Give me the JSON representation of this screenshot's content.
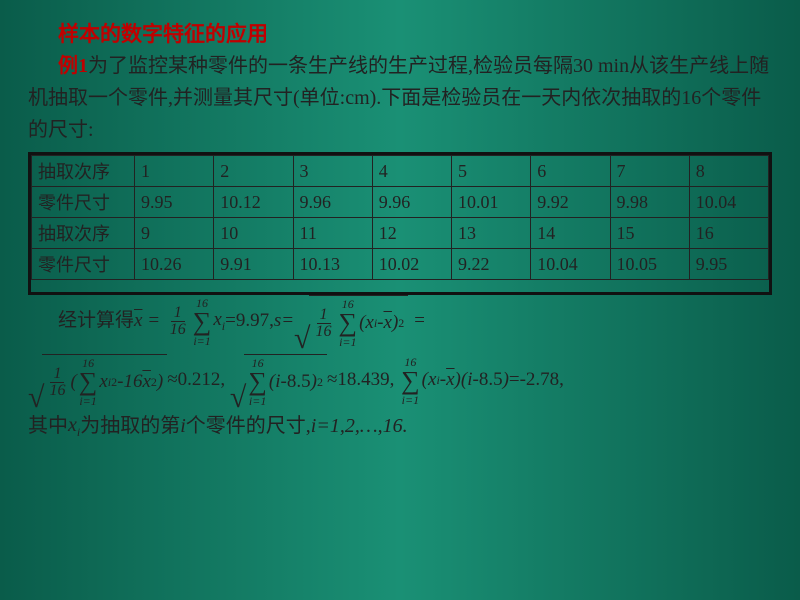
{
  "title": "样本的数字特征的应用",
  "example_label": "例1",
  "intro_rest": "为了监控某种零件的一条生产线的生产过程,检验员每隔30 min从该生产线上随机抽取一个零件,并测量其尺寸(单位:cm).下面是检验员在一天内依次抽取的16个零件的尺寸:",
  "table": {
    "row_labels": [
      "抽取次序",
      "零件尺寸",
      "抽取次序",
      "零件尺寸"
    ],
    "rows": [
      [
        "1",
        "2",
        "3",
        "4",
        "5",
        "6",
        "7",
        "8"
      ],
      [
        "9.95",
        "10.12",
        "9.96",
        "9.96",
        "10.01",
        "9.92",
        "9.98",
        "10.04"
      ],
      [
        "9",
        "10",
        "11",
        "12",
        "13",
        "14",
        "15",
        "16"
      ],
      [
        "10.26",
        "9.91",
        "10.13",
        "10.02",
        "9.22",
        "10.04",
        "10.05",
        "9.95"
      ]
    ]
  },
  "math": {
    "mean_prefix_cn": "经计算得",
    "xbar_value": "=9.97,",
    "s_label": "s=",
    "n_upper": "16",
    "n_lower": "i=1",
    "frac_num": "1",
    "frac_den": "16",
    "approx1": "≈0.212,",
    "approx2": "≈18.439,",
    "eq3": "=-2.78,",
    "sixteen": "16",
    "eight_five": "8.5",
    "footer_pre": "其中 ",
    "footer_mid": " 为抽取的第 ",
    "footer_post": " 个零件的尺寸,",
    "footer_range": "i=1,2,…,16."
  },
  "style": {
    "title_color": "#c00000",
    "text_color": "#222222",
    "bg_gradient": [
      "#0a5c4a",
      "#1a9075",
      "#0a5c4a"
    ],
    "table_border_color": "#111111",
    "font_size_body": 20,
    "font_size_table": 18
  }
}
